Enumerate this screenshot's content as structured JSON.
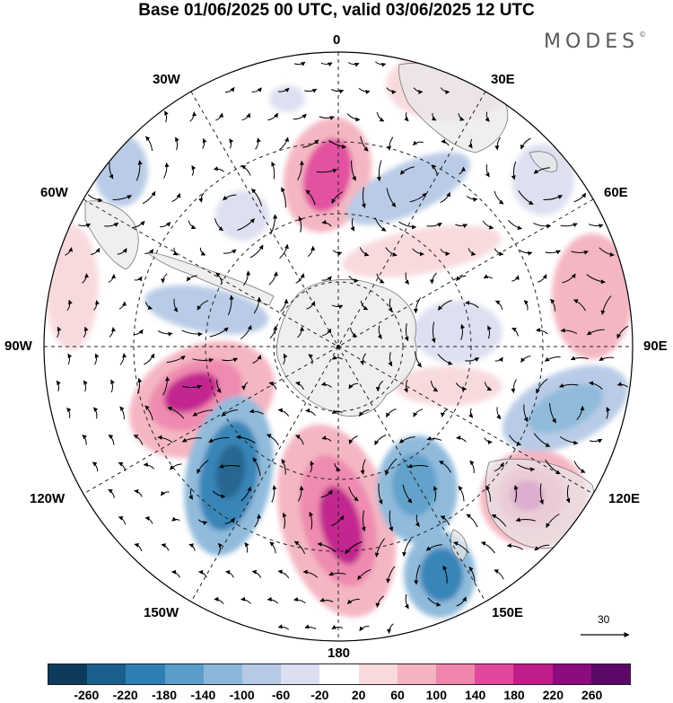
{
  "title": "Base 01/06/2025 00 UTC, valid 03/06/2025 12 UTC",
  "brand": "MODES",
  "brand_mark": "©",
  "longitude_labels": {
    "lon_0": "0",
    "lon_30e": "30E",
    "lon_60e": "60E",
    "lon_90e": "90E",
    "lon_120e": "120E",
    "lon_150e": "150E",
    "lon_180": "180",
    "lon_150w": "150W",
    "lon_120w": "120W",
    "lon_90w": "90W",
    "lon_60w": "60W",
    "lon_30w": "30W"
  },
  "reference_vector": {
    "label": "30"
  },
  "colorbar": {
    "colors": [
      "#0e3a5c",
      "#1a5f8d",
      "#2f7fb4",
      "#5a9dc9",
      "#8bb8da",
      "#b6c9e5",
      "#dcdff0",
      "#ffffff",
      "#f8d9dc",
      "#f4b3bf",
      "#ef85ac",
      "#e1489b",
      "#c01d8a",
      "#8d0b7e",
      "#5a0a66"
    ],
    "labels": [
      "-260",
      "-220",
      "-180",
      "-140",
      "-100",
      "-60",
      "-20",
      "20",
      "60",
      "100",
      "140",
      "180",
      "220",
      "260"
    ]
  }
}
